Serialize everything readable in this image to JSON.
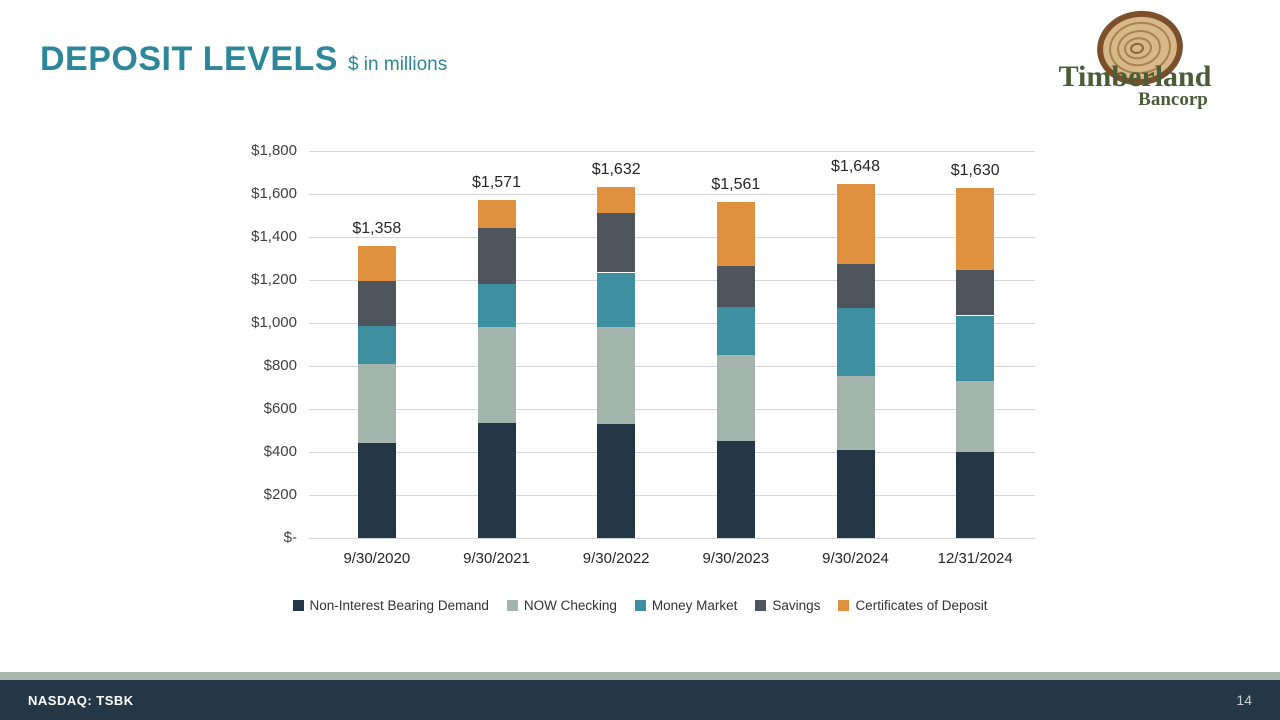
{
  "slide": {
    "title": "DEPOSIT LEVELS",
    "subtitle": "$ in millions",
    "footer_ticker": "NASDAQ: TSBK",
    "page_number": "14"
  },
  "logo": {
    "line1": "Timberland",
    "line2": "Bancorp"
  },
  "chart_data": {
    "type": "bar",
    "stacked": true,
    "title": "Deposit Levels ($ in millions)",
    "categories": [
      "9/30/2020",
      "9/30/2021",
      "9/30/2022",
      "9/30/2023",
      "9/30/2024",
      "12/31/2024"
    ],
    "series": [
      {
        "name": "Non-Interest Bearing Demand",
        "color": "#243746",
        "values": [
          440,
          535,
          530,
          450,
          410,
          400
        ]
      },
      {
        "name": "NOW Checking",
        "color": "#a3b5ac",
        "values": [
          370,
          445,
          450,
          400,
          345,
          330
        ]
      },
      {
        "name": "Money Market",
        "color": "#3e8fa0",
        "values": [
          175,
          200,
          255,
          225,
          315,
          305
        ]
      },
      {
        "name": "Savings",
        "color": "#4e555c",
        "values": [
          210,
          260,
          275,
          190,
          205,
          210
        ]
      },
      {
        "name": "Certificates of Deposit",
        "color": "#e0913f",
        "values": [
          163,
          131,
          122,
          296,
          373,
          385
        ]
      }
    ],
    "totals": [
      "$1,358",
      "$1,571",
      "$1,632",
      "$1,561",
      "$1,648",
      "$1,630"
    ],
    "y_ticks": [
      "$1,800",
      "$1,600",
      "$1,400",
      "$1,200",
      "$1,000",
      "$800",
      "$600",
      "$400",
      "$200",
      "$-"
    ],
    "ylim": [
      0,
      1800
    ],
    "y_step": 200,
    "grid": true,
    "legend_position": "bottom"
  }
}
